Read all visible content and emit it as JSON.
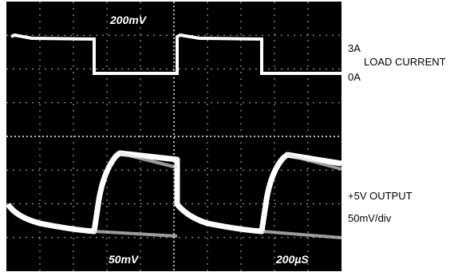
{
  "screen": {
    "labels": [
      "200mV",
      "50mV",
      "200µS"
    ]
  },
  "annotations": {
    "current_high": "3A",
    "current_name": "LOAD CURRENT",
    "current_low": "0A",
    "output_name": "+5V OUTPUT",
    "output_scale": "50mV/div"
  }
}
